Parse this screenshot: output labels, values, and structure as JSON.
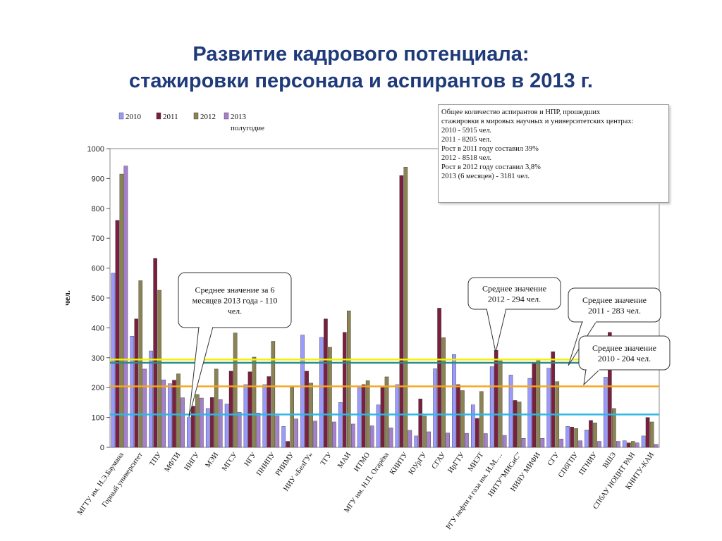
{
  "title": {
    "line1": "Развитие кадрового потенциала:",
    "line2": "стажировки персонала и аспирантов в 2013 г."
  },
  "info_box": {
    "lines": [
      "Общее количество аспирантов и НПР, прошедших",
      "стажировки в мировых научных и университетских центрах:",
      "2010 - 5915 чел.",
      "2011 - 8205 чел.",
      "Рост в 2011 году составил 39%",
      "2012 - 8518 чел.",
      "Рост в 2012 году составил 3,8%",
      "2013 (6 месяцев) - 3181 чел."
    ]
  },
  "colors": {
    "series": [
      "#9999ff",
      "#7a1f3d",
      "#8b8352",
      "#a67fcf"
    ],
    "avg_2010": "#f5a623",
    "avg_2011": "#2e8b8b",
    "avg_2012": "#f2f200",
    "avg_2013": "#2fb7e6",
    "title": "#1f3a7a"
  },
  "callouts": [
    {
      "text": "Среднее значение за 6 месяцев 2013 года - 110 чел.",
      "lines": [
        "Среднее значение за 6",
        "месяцев 2013 года - 110",
        "чел."
      ]
    },
    {
      "text": "Среднее значение 2012 - 294 чел.",
      "lines": [
        "Среднее значение",
        "2012 - 294 чел."
      ]
    },
    {
      "text": "Среднее значение 2011 - 283 чел.",
      "lines": [
        "Среднее значение",
        "2011 - 283 чел."
      ]
    },
    {
      "text": "Среднее значение 2010 - 204 чел.",
      "lines": [
        "Среднее значение",
        "2010 - 204 чел."
      ]
    }
  ],
  "chart_data": {
    "type": "bar",
    "ylabel": "чел.",
    "ylim": [
      0,
      1000
    ],
    "yticks": [
      0,
      100,
      200,
      300,
      400,
      500,
      600,
      700,
      800,
      900,
      1000
    ],
    "legend": [
      "2010",
      "2011",
      "2012",
      "2013 полугодие"
    ],
    "categories": [
      "МГТУ им. Н.Э.Баумана",
      "Горный университет",
      "ТПУ",
      "МФТИ",
      "ННГУ",
      "МЭИ",
      "МГСУ",
      "НГУ",
      "ПНИПУ",
      "РНИМУ",
      "НИУ «БелГУ»",
      "ТГУ",
      "МАИ",
      "ИТМО",
      "МГУ им. Н.П. Огарёва",
      "КНИТУ",
      "ЮУрГУ",
      "СГАУ",
      "ИрГТУ",
      "МИЭТ",
      "РГУ нефти и газа им. И.М.…",
      "НИТУ\"МИСиС\"",
      "НИЯУ МИФИ",
      "СГУ",
      "СПбГПУ",
      "ПГНИУ",
      "ВШЭ",
      "СПбАУ НОЦНТ РАН",
      "КНИТУ-КАИ"
    ],
    "series": [
      {
        "name": "2010",
        "values": [
          583,
          372,
          323,
          213,
          100,
          130,
          145,
          210,
          210,
          70,
          376,
          368,
          150,
          205,
          142,
          210,
          38,
          263,
          311,
          142,
          270,
          242,
          231,
          265,
          70,
          58,
          235,
          22,
          38
        ]
      },
      {
        "name": "2011",
        "values": [
          760,
          430,
          633,
          225,
          138,
          167,
          255,
          253,
          237,
          20,
          255,
          430,
          385,
          210,
          200,
          910,
          162,
          466,
          210,
          97,
          325,
          157,
          280,
          320,
          68,
          90,
          385,
          15,
          100
        ]
      },
      {
        "name": "2012",
        "values": [
          915,
          558,
          526,
          246,
          177,
          262,
          383,
          302,
          355,
          205,
          215,
          335,
          457,
          223,
          236,
          938,
          105,
          367,
          190,
          187,
          290,
          152,
          296,
          220,
          63,
          82,
          130,
          20,
          85
        ]
      },
      {
        "name": "2013 полугодие",
        "values": [
          942,
          262,
          226,
          166,
          165,
          160,
          117,
          115,
          105,
          95,
          88,
          85,
          78,
          72,
          65,
          57,
          52,
          48,
          47,
          46,
          40,
          30,
          30,
          28,
          22,
          20,
          20,
          15,
          10
        ]
      }
    ],
    "averages": [
      {
        "name": "2010",
        "value": 204
      },
      {
        "name": "2011",
        "value": 283
      },
      {
        "name": "2012",
        "value": 294
      },
      {
        "name": "2013 полугодие",
        "value": 110
      }
    ]
  }
}
